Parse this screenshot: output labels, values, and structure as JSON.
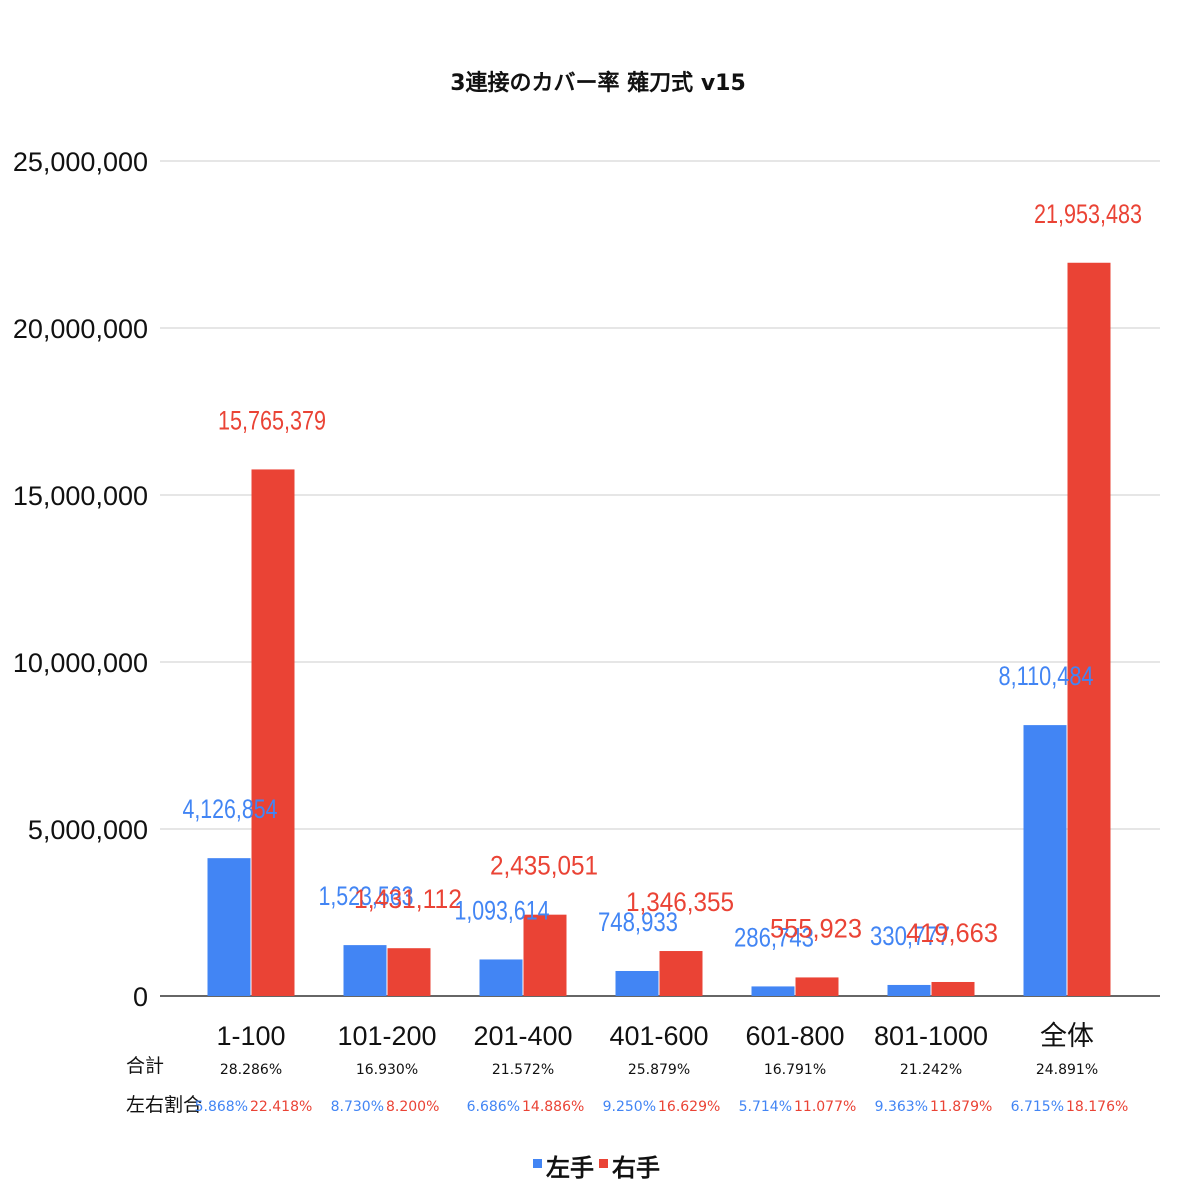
{
  "chart_data": {
    "type": "bar",
    "title": "3連接のカバー率 薙刀式 v15",
    "xlabel": "",
    "ylabel": "",
    "categories": [
      "1-100",
      "101-200",
      "201-400",
      "401-600",
      "601-800",
      "801-1000",
      "全体"
    ],
    "series": [
      {
        "name": "左手",
        "color": "#4285f4",
        "values": [
          4126854,
          1523563,
          1093614,
          748933,
          286743,
          330777,
          8110484
        ],
        "labels": [
          "4,126,854",
          "1,523,563",
          "1,093,614",
          "748,933",
          "286,743",
          "330,777",
          "8,110,484"
        ]
      },
      {
        "name": "右手",
        "color": "#ea4335",
        "values": [
          15765379,
          1431112,
          2435051,
          1346355,
          555923,
          419663,
          21953483
        ],
        "labels": [
          "15,765,379",
          "1,431,112",
          "2,435,051",
          "1,346,355",
          "555,923",
          "419,663",
          "21,953,483"
        ]
      }
    ],
    "ylim": [
      0,
      25000000
    ],
    "yticks": [
      0,
      5000000,
      10000000,
      15000000,
      20000000,
      25000000
    ],
    "ytick_labels": [
      "0",
      "5,000,000",
      "10,000,000",
      "15,000,000",
      "20,000,000",
      "25,000,000"
    ],
    "grid": true,
    "legend": "bottom",
    "table": {
      "total_label": "合計",
      "ratio_label": "左右割合",
      "totals": [
        "28.286%",
        "16.930%",
        "21.572%",
        "25.879%",
        "16.791%",
        "21.242%",
        "24.891%"
      ],
      "left_ratios": [
        "5.868%",
        "8.730%",
        "6.686%",
        "9.250%",
        "5.714%",
        "9.363%",
        "6.715%"
      ],
      "right_ratios": [
        "22.418%",
        "8.200%",
        "14.886%",
        "16.629%",
        "11.077%",
        "11.879%",
        "18.176%"
      ]
    }
  }
}
